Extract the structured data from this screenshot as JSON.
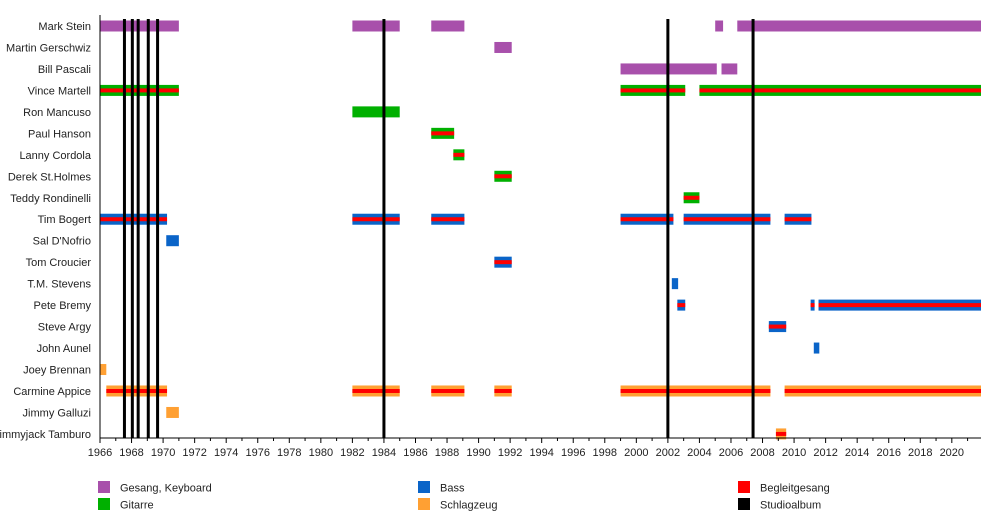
{
  "chart_data": {
    "type": "timeline",
    "title": "",
    "xlim": [
      1966,
      2021.85
    ],
    "x_ticks": [
      1966,
      1968,
      1970,
      1972,
      1974,
      1976,
      1978,
      1980,
      1982,
      1984,
      1986,
      1988,
      1990,
      1992,
      1994,
      1996,
      1998,
      2000,
      2002,
      2004,
      2006,
      2008,
      2010,
      2012,
      2014,
      2016,
      2018,
      2020
    ],
    "colors": {
      "vocals": "#a850ab",
      "guitar": "#00b000",
      "bass": "#0a64c8",
      "drums": "#ffa033",
      "backing": "#ff0000",
      "album": "#000000"
    },
    "legend": [
      {
        "key": "vocals",
        "label": "Gesang, Keyboard"
      },
      {
        "key": "guitar",
        "label": "Gitarre"
      },
      {
        "key": "bass",
        "label": "Bass"
      },
      {
        "key": "drums",
        "label": "Schlagzeug"
      },
      {
        "key": "backing",
        "label": "Begleitgesang"
      },
      {
        "key": "album",
        "label": "Studioalbum"
      }
    ],
    "studio_albums": [
      1967.55,
      1968.05,
      1968.42,
      1969.06,
      1969.65,
      1984.0,
      2002.0,
      2007.4
    ],
    "members": [
      {
        "name": "Mark Stein",
        "segments": [
          {
            "role": "vocals",
            "start": 1966.0,
            "end": 1971.0,
            "backing": false
          },
          {
            "role": "vocals",
            "start": 1982.0,
            "end": 1985.0,
            "backing": false
          },
          {
            "role": "vocals",
            "start": 1987.0,
            "end": 1989.1,
            "backing": false
          },
          {
            "role": "vocals",
            "start": 2005.0,
            "end": 2005.5,
            "backing": false
          },
          {
            "role": "vocals",
            "start": 2006.4,
            "end": 2021.85,
            "backing": false
          }
        ]
      },
      {
        "name": "Martin Gerschwiz",
        "segments": [
          {
            "role": "vocals",
            "start": 1991.0,
            "end": 1992.1,
            "backing": false
          }
        ]
      },
      {
        "name": "Bill Pascali",
        "segments": [
          {
            "role": "vocals",
            "start": 1999.0,
            "end": 2005.1,
            "backing": false
          },
          {
            "role": "vocals",
            "start": 2005.4,
            "end": 2006.4,
            "backing": false
          }
        ]
      },
      {
        "name": "Vince Martell",
        "segments": [
          {
            "role": "guitar",
            "start": 1966.0,
            "end": 1971.0,
            "backing": true
          },
          {
            "role": "guitar",
            "start": 1999.0,
            "end": 2003.1,
            "backing": true
          },
          {
            "role": "guitar",
            "start": 2004.0,
            "end": 2021.85,
            "backing": true
          }
        ]
      },
      {
        "name": "Ron Mancuso",
        "segments": [
          {
            "role": "guitar",
            "start": 1982.0,
            "end": 1985.0,
            "backing": false
          }
        ]
      },
      {
        "name": "Paul Hanson",
        "segments": [
          {
            "role": "guitar",
            "start": 1987.0,
            "end": 1988.45,
            "backing": true
          }
        ]
      },
      {
        "name": "Lanny Cordola",
        "segments": [
          {
            "role": "guitar",
            "start": 1988.4,
            "end": 1989.1,
            "backing": true
          }
        ]
      },
      {
        "name": "Derek St.Holmes",
        "segments": [
          {
            "role": "guitar",
            "start": 1991.0,
            "end": 1992.1,
            "backing": true
          }
        ]
      },
      {
        "name": "Teddy Rondinelli",
        "segments": [
          {
            "role": "guitar",
            "start": 2003.0,
            "end": 2004.0,
            "backing": true
          }
        ]
      },
      {
        "name": "Tim Bogert",
        "segments": [
          {
            "role": "bass",
            "start": 1966.0,
            "end": 1970.25,
            "backing": true
          },
          {
            "role": "bass",
            "start": 1982.0,
            "end": 1985.0,
            "backing": true
          },
          {
            "role": "bass",
            "start": 1987.0,
            "end": 1989.1,
            "backing": true
          },
          {
            "role": "bass",
            "start": 1999.0,
            "end": 2002.35,
            "backing": true
          },
          {
            "role": "bass",
            "start": 2003.0,
            "end": 2008.5,
            "backing": true
          },
          {
            "role": "bass",
            "start": 2009.4,
            "end": 2011.1,
            "backing": true
          }
        ]
      },
      {
        "name": "Sal D'Nofrio",
        "segments": [
          {
            "role": "bass",
            "start": 1970.2,
            "end": 1971.0,
            "backing": false
          }
        ]
      },
      {
        "name": "Tom Croucier",
        "segments": [
          {
            "role": "bass",
            "start": 1991.0,
            "end": 1992.1,
            "backing": true
          }
        ]
      },
      {
        "name": "T.M. Stevens",
        "segments": [
          {
            "role": "bass",
            "start": 2002.25,
            "end": 2002.65,
            "backing": false
          }
        ]
      },
      {
        "name": "Pete Bremy",
        "segments": [
          {
            "role": "bass",
            "start": 2002.6,
            "end": 2003.1,
            "backing": true
          },
          {
            "role": "bass",
            "start": 2011.05,
            "end": 2011.3,
            "backing": true
          },
          {
            "role": "bass",
            "start": 2011.55,
            "end": 2021.85,
            "backing": true
          }
        ]
      },
      {
        "name": "Steve Argy",
        "segments": [
          {
            "role": "bass",
            "start": 2008.4,
            "end": 2009.5,
            "backing": true
          }
        ]
      },
      {
        "name": "John Aunel",
        "segments": [
          {
            "role": "bass",
            "start": 2011.25,
            "end": 2011.6,
            "backing": false
          }
        ]
      },
      {
        "name": "Joey Brennan",
        "segments": [
          {
            "role": "drums",
            "start": 1966.0,
            "end": 1966.4,
            "backing": false
          }
        ]
      },
      {
        "name": "Carmine Appice",
        "segments": [
          {
            "role": "drums",
            "start": 1966.4,
            "end": 1970.25,
            "backing": true
          },
          {
            "role": "drums",
            "start": 1982.0,
            "end": 1985.0,
            "backing": true
          },
          {
            "role": "drums",
            "start": 1987.0,
            "end": 1989.1,
            "backing": true
          },
          {
            "role": "drums",
            "start": 1991.0,
            "end": 1992.1,
            "backing": true
          },
          {
            "role": "drums",
            "start": 1999.0,
            "end": 2008.5,
            "backing": true
          },
          {
            "role": "drums",
            "start": 2009.4,
            "end": 2021.85,
            "backing": true
          }
        ]
      },
      {
        "name": "Jimmy Galluzi",
        "segments": [
          {
            "role": "drums",
            "start": 1970.2,
            "end": 1971.0,
            "backing": false
          }
        ]
      },
      {
        "name": "Jimmyjack Tamburo",
        "segments": [
          {
            "role": "drums",
            "start": 2008.85,
            "end": 2009.5,
            "backing": true
          }
        ]
      }
    ]
  }
}
